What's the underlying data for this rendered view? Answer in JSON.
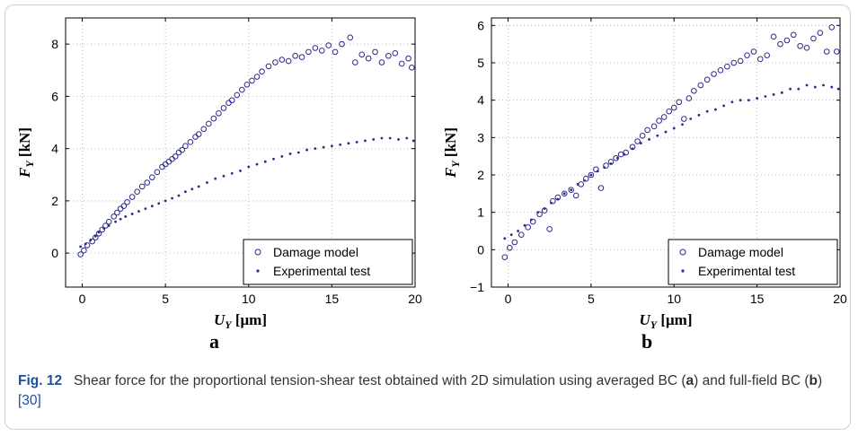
{
  "figure": {
    "label": "Fig. 12",
    "caption_parts": [
      "Shear force for the proportional tension-shear test obtained with 2D simulation using averaged BC (",
      "a",
      ") and full-field BC (",
      "b",
      ") ",
      "[30]"
    ]
  },
  "style": {
    "series_color": "#2e2a8c",
    "caption_label_color": "#1a4fa0"
  },
  "chart_data": [
    {
      "type": "scatter",
      "panel_label": "a",
      "xlabel": "U_Y [μm]",
      "ylabel": "F_Y [kN]",
      "xlim": [
        -1,
        20
      ],
      "ylim": [
        -1.3,
        9
      ],
      "xticks": [
        0,
        5,
        10,
        15,
        20
      ],
      "yticks": [
        0,
        2,
        4,
        6,
        8
      ],
      "grid": true,
      "legend_position": "bottom-right",
      "series": [
        {
          "name": "Damage model",
          "marker": "open-circle",
          "points": [
            [
              -0.1,
              -0.05
            ],
            [
              0.1,
              0.1
            ],
            [
              0.3,
              0.3
            ],
            [
              0.6,
              0.45
            ],
            [
              0.8,
              0.6
            ],
            [
              1.0,
              0.75
            ],
            [
              1.2,
              0.9
            ],
            [
              1.4,
              1.05
            ],
            [
              1.6,
              1.2
            ],
            [
              1.9,
              1.4
            ],
            [
              2.1,
              1.55
            ],
            [
              2.3,
              1.7
            ],
            [
              2.5,
              1.8
            ],
            [
              2.7,
              1.95
            ],
            [
              3.0,
              2.15
            ],
            [
              3.3,
              2.35
            ],
            [
              3.6,
              2.55
            ],
            [
              3.9,
              2.7
            ],
            [
              4.2,
              2.9
            ],
            [
              4.5,
              3.1
            ],
            [
              4.8,
              3.3
            ],
            [
              5.0,
              3.4
            ],
            [
              5.2,
              3.5
            ],
            [
              5.4,
              3.6
            ],
            [
              5.6,
              3.7
            ],
            [
              5.8,
              3.85
            ],
            [
              6.0,
              3.95
            ],
            [
              6.2,
              4.1
            ],
            [
              6.5,
              4.25
            ],
            [
              6.8,
              4.45
            ],
            [
              7.0,
              4.55
            ],
            [
              7.3,
              4.75
            ],
            [
              7.6,
              4.95
            ],
            [
              7.9,
              5.15
            ],
            [
              8.2,
              5.35
            ],
            [
              8.5,
              5.55
            ],
            [
              8.8,
              5.75
            ],
            [
              9.0,
              5.85
            ],
            [
              9.3,
              6.05
            ],
            [
              9.6,
              6.25
            ],
            [
              9.9,
              6.45
            ],
            [
              10.2,
              6.6
            ],
            [
              10.5,
              6.75
            ],
            [
              10.8,
              6.95
            ],
            [
              11.2,
              7.15
            ],
            [
              11.6,
              7.3
            ],
            [
              12.0,
              7.4
            ],
            [
              12.4,
              7.35
            ],
            [
              12.8,
              7.55
            ],
            [
              13.2,
              7.5
            ],
            [
              13.6,
              7.7
            ],
            [
              14.0,
              7.85
            ],
            [
              14.4,
              7.75
            ],
            [
              14.8,
              7.95
            ],
            [
              15.2,
              7.7
            ],
            [
              15.6,
              8.0
            ],
            [
              16.1,
              8.25
            ],
            [
              16.4,
              7.3
            ],
            [
              16.8,
              7.6
            ],
            [
              17.2,
              7.45
            ],
            [
              17.6,
              7.7
            ],
            [
              18.0,
              7.3
            ],
            [
              18.4,
              7.55
            ],
            [
              18.8,
              7.65
            ],
            [
              19.2,
              7.25
            ],
            [
              19.6,
              7.45
            ],
            [
              19.8,
              7.1
            ]
          ]
        },
        {
          "name": "Experimental test",
          "marker": "dot",
          "points": [
            [
              -0.1,
              0.25
            ],
            [
              0.2,
              0.35
            ],
            [
              0.5,
              0.5
            ],
            [
              0.8,
              0.65
            ],
            [
              1.0,
              0.8
            ],
            [
              1.3,
              0.95
            ],
            [
              1.6,
              1.05
            ],
            [
              2.0,
              1.2
            ],
            [
              2.3,
              1.3
            ],
            [
              2.6,
              1.4
            ],
            [
              3.0,
              1.5
            ],
            [
              3.4,
              1.6
            ],
            [
              3.8,
              1.7
            ],
            [
              4.2,
              1.8
            ],
            [
              4.6,
              1.9
            ],
            [
              5.0,
              2.0
            ],
            [
              5.4,
              2.1
            ],
            [
              5.8,
              2.2
            ],
            [
              6.2,
              2.35
            ],
            [
              6.6,
              2.45
            ],
            [
              7.0,
              2.55
            ],
            [
              7.5,
              2.7
            ],
            [
              8.0,
              2.85
            ],
            [
              8.5,
              2.95
            ],
            [
              9.0,
              3.05
            ],
            [
              9.5,
              3.15
            ],
            [
              10.0,
              3.3
            ],
            [
              10.5,
              3.4
            ],
            [
              11.0,
              3.5
            ],
            [
              11.5,
              3.6
            ],
            [
              12.0,
              3.7
            ],
            [
              12.5,
              3.8
            ],
            [
              13.0,
              3.85
            ],
            [
              13.5,
              3.95
            ],
            [
              14.0,
              4.0
            ],
            [
              14.5,
              4.05
            ],
            [
              15.0,
              4.1
            ],
            [
              15.5,
              4.15
            ],
            [
              16.0,
              4.2
            ],
            [
              16.5,
              4.25
            ],
            [
              17.0,
              4.3
            ],
            [
              17.5,
              4.35
            ],
            [
              18.0,
              4.4
            ],
            [
              18.5,
              4.4
            ],
            [
              19.0,
              4.35
            ],
            [
              19.5,
              4.4
            ],
            [
              19.9,
              4.3
            ]
          ]
        }
      ]
    },
    {
      "type": "scatter",
      "panel_label": "b",
      "xlabel": "U_Y [μm]",
      "ylabel": "F_Y [kN]",
      "xlim": [
        -1,
        20
      ],
      "ylim": [
        -1,
        6.2
      ],
      "xticks": [
        0,
        5,
        10,
        15,
        20
      ],
      "yticks": [
        -1,
        0,
        1,
        2,
        3,
        4,
        5,
        6
      ],
      "grid": true,
      "legend_position": "bottom-right",
      "series": [
        {
          "name": "Damage model",
          "marker": "open-circle",
          "points": [
            [
              -0.2,
              -0.2
            ],
            [
              0.1,
              0.05
            ],
            [
              0.4,
              0.2
            ],
            [
              0.8,
              0.4
            ],
            [
              1.2,
              0.6
            ],
            [
              1.5,
              0.75
            ],
            [
              1.9,
              0.95
            ],
            [
              2.2,
              1.05
            ],
            [
              2.5,
              0.55
            ],
            [
              2.7,
              1.3
            ],
            [
              3.0,
              1.4
            ],
            [
              3.4,
              1.5
            ],
            [
              3.8,
              1.6
            ],
            [
              4.1,
              1.45
            ],
            [
              4.4,
              1.75
            ],
            [
              4.7,
              1.9
            ],
            [
              5.0,
              2.0
            ],
            [
              5.3,
              2.15
            ],
            [
              5.6,
              1.65
            ],
            [
              5.9,
              2.25
            ],
            [
              6.2,
              2.35
            ],
            [
              6.5,
              2.45
            ],
            [
              6.8,
              2.55
            ],
            [
              7.1,
              2.6
            ],
            [
              7.5,
              2.75
            ],
            [
              7.8,
              2.9
            ],
            [
              8.1,
              3.05
            ],
            [
              8.4,
              3.2
            ],
            [
              8.8,
              3.3
            ],
            [
              9.1,
              3.45
            ],
            [
              9.4,
              3.55
            ],
            [
              9.7,
              3.7
            ],
            [
              10.0,
              3.8
            ],
            [
              10.3,
              3.95
            ],
            [
              10.6,
              3.5
            ],
            [
              10.9,
              4.05
            ],
            [
              11.2,
              4.25
            ],
            [
              11.6,
              4.4
            ],
            [
              12.0,
              4.55
            ],
            [
              12.4,
              4.7
            ],
            [
              12.8,
              4.8
            ],
            [
              13.2,
              4.9
            ],
            [
              13.6,
              5.0
            ],
            [
              14.0,
              5.05
            ],
            [
              14.4,
              5.2
            ],
            [
              14.8,
              5.3
            ],
            [
              15.2,
              5.1
            ],
            [
              15.6,
              5.2
            ],
            [
              16.0,
              5.7
            ],
            [
              16.4,
              5.5
            ],
            [
              16.8,
              5.6
            ],
            [
              17.2,
              5.75
            ],
            [
              17.6,
              5.45
            ],
            [
              18.0,
              5.4
            ],
            [
              18.4,
              5.65
            ],
            [
              18.8,
              5.8
            ],
            [
              19.2,
              5.3
            ],
            [
              19.5,
              5.95
            ],
            [
              19.8,
              5.3
            ]
          ]
        },
        {
          "name": "Experimental test",
          "marker": "dot",
          "points": [
            [
              -0.2,
              0.3
            ],
            [
              0.2,
              0.4
            ],
            [
              0.6,
              0.5
            ],
            [
              1.0,
              0.65
            ],
            [
              1.4,
              0.8
            ],
            [
              1.8,
              1.0
            ],
            [
              2.2,
              1.1
            ],
            [
              2.6,
              1.25
            ],
            [
              3.0,
              1.35
            ],
            [
              3.4,
              1.5
            ],
            [
              3.8,
              1.6
            ],
            [
              4.2,
              1.75
            ],
            [
              4.6,
              1.85
            ],
            [
              5.0,
              2.0
            ],
            [
              5.4,
              2.1
            ],
            [
              5.8,
              2.2
            ],
            [
              6.2,
              2.3
            ],
            [
              6.6,
              2.45
            ],
            [
              7.0,
              2.55
            ],
            [
              7.5,
              2.7
            ],
            [
              8.0,
              2.85
            ],
            [
              8.5,
              2.95
            ],
            [
              9.0,
              3.05
            ],
            [
              9.5,
              3.15
            ],
            [
              10.0,
              3.25
            ],
            [
              10.5,
              3.35
            ],
            [
              11.0,
              3.5
            ],
            [
              11.5,
              3.6
            ],
            [
              12.0,
              3.7
            ],
            [
              12.5,
              3.75
            ],
            [
              13.0,
              3.85
            ],
            [
              13.5,
              3.95
            ],
            [
              14.0,
              4.0
            ],
            [
              14.5,
              4.0
            ],
            [
              15.0,
              4.05
            ],
            [
              15.5,
              4.1
            ],
            [
              16.0,
              4.15
            ],
            [
              16.5,
              4.2
            ],
            [
              17.0,
              4.3
            ],
            [
              17.5,
              4.3
            ],
            [
              18.0,
              4.4
            ],
            [
              18.5,
              4.35
            ],
            [
              19.0,
              4.4
            ],
            [
              19.5,
              4.35
            ],
            [
              19.9,
              4.3
            ]
          ]
        }
      ]
    }
  ]
}
